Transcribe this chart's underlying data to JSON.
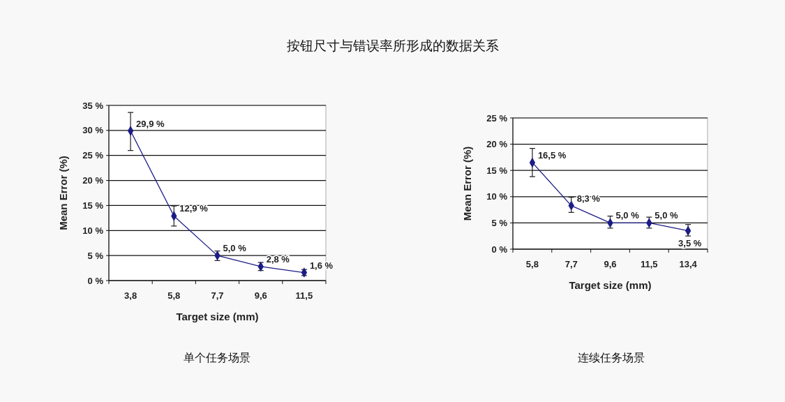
{
  "chart_data": [
    {
      "type": "line",
      "title": "按钮尺寸与错误率所形成的数据关系",
      "xlabel": "Target size (mm)",
      "ylabel": "Mean Error (%)",
      "annotations": [
        "单个任务场景"
      ],
      "categories": [
        "3,8",
        "5,8",
        "7,7",
        "9,6",
        "11,5"
      ],
      "series": [
        {
          "color": "#1c1c84",
          "values": [
            29.9,
            12.9,
            5.0,
            2.8,
            1.6
          ],
          "errors": [
            [
              26.0,
              33.6
            ],
            [
              10.9,
              14.9
            ],
            [
              4.0,
              5.9
            ],
            [
              2.0,
              3.6
            ],
            [
              1.0,
              2.2
            ]
          ],
          "value_labels": [
            "29,9 %",
            "12,9 %",
            "5,0 %",
            "2,8 %",
            "1,6 %"
          ]
        }
      ],
      "ylim": [
        0,
        35
      ],
      "yticks": [
        {
          "value": 0,
          "label": "0 %"
        },
        {
          "value": 5,
          "label": "5 %"
        },
        {
          "value": 10,
          "label": "10 %"
        },
        {
          "value": 15,
          "label": "15 %"
        },
        {
          "value": 20,
          "label": "20 %"
        },
        {
          "value": 25,
          "label": "25 %"
        },
        {
          "value": 30,
          "label": "30 %"
        },
        {
          "value": 35,
          "label": "35 %"
        }
      ],
      "grid": "y",
      "marker": "diamond",
      "line_style": "solid"
    },
    {
      "type": "line",
      "xlabel": "Target size (mm)",
      "ylabel": "Mean Error (%)",
      "annotations": [
        "连续任务场景"
      ],
      "categories": [
        "5,8",
        "7,7",
        "9,6",
        "11,5",
        "13,4"
      ],
      "series": [
        {
          "color": "#1c1c84",
          "values": [
            16.5,
            8.3,
            5.0,
            5.0,
            3.5
          ],
          "errors": [
            [
              13.8,
              19.2
            ],
            [
              7.0,
              9.9
            ],
            [
              4.0,
              6.3
            ],
            [
              4.0,
              6.1
            ],
            [
              2.5,
              4.7
            ]
          ],
          "value_labels": [
            "16,5 %",
            "8,3 %",
            "5,0 %",
            "5,0 %",
            "3,5 %"
          ]
        }
      ],
      "ylim": [
        0,
        25
      ],
      "yticks": [
        {
          "value": 0,
          "label": "0 %"
        },
        {
          "value": 5,
          "label": "5 %"
        },
        {
          "value": 10,
          "label": "10 %"
        },
        {
          "value": 15,
          "label": "15 %"
        },
        {
          "value": 20,
          "label": "20 %"
        },
        {
          "value": 25,
          "label": "25 %"
        }
      ],
      "grid": "y",
      "marker": "diamond",
      "line_style": "solid"
    }
  ]
}
